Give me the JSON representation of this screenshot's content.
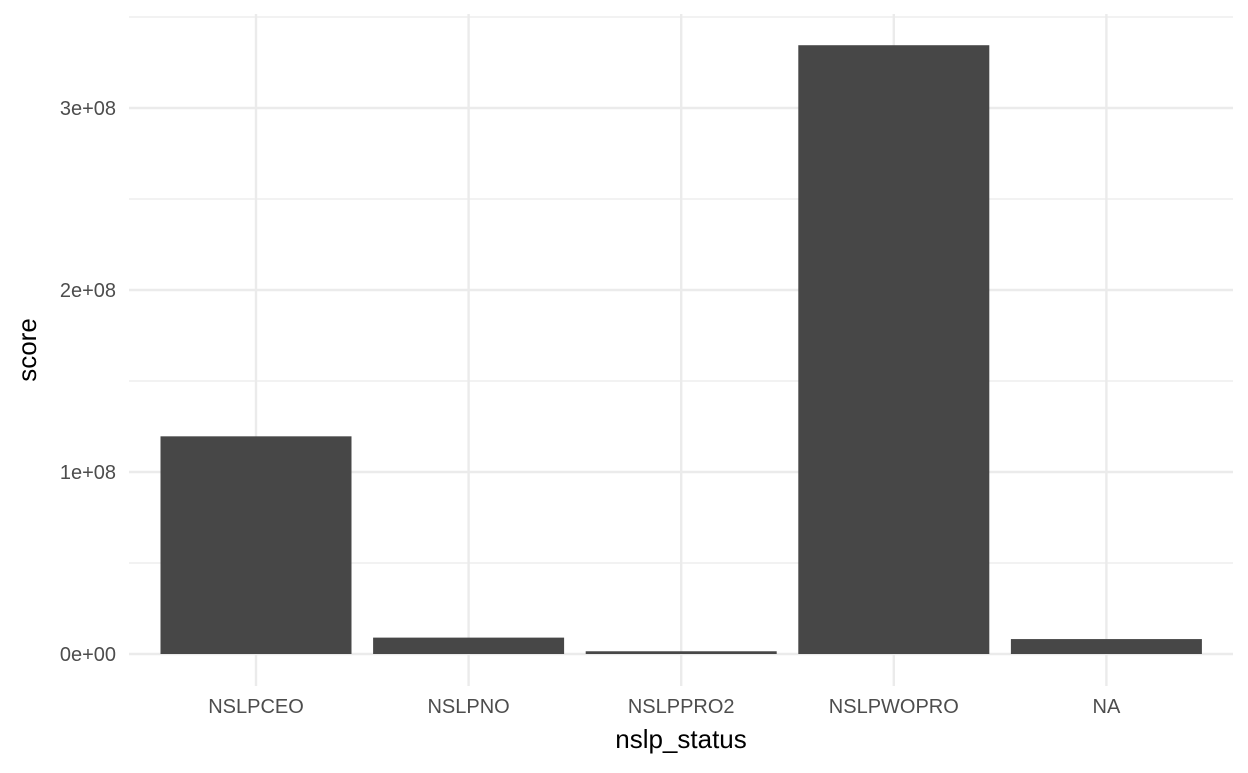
{
  "chart_data": {
    "type": "bar",
    "title": "",
    "xlabel": "nslp_status",
    "ylabel": "score",
    "categories": [
      "NSLPCEO",
      "NSLPNO",
      "NSLPPRO2",
      "NSLPWOPRO",
      "NA"
    ],
    "values": [
      119600000,
      9000000,
      1500000,
      334500000,
      8200000
    ],
    "ylim": [
      0,
      350000000
    ],
    "yticks": [
      {
        "value": 0,
        "label": "0e+00"
      },
      {
        "value": 100000000,
        "label": "1e+08"
      },
      {
        "value": 200000000,
        "label": "2e+08"
      },
      {
        "value": 300000000,
        "label": "3e+08"
      }
    ],
    "minor_yticks": [
      50000000,
      150000000,
      250000000,
      350000000
    ],
    "grid": true,
    "legend": "none",
    "colors": {
      "bar": "#474747",
      "grid": "#ebebeb",
      "tick_text": "#4d4d4d",
      "axis_title": "#000000",
      "background": "#ffffff"
    }
  }
}
